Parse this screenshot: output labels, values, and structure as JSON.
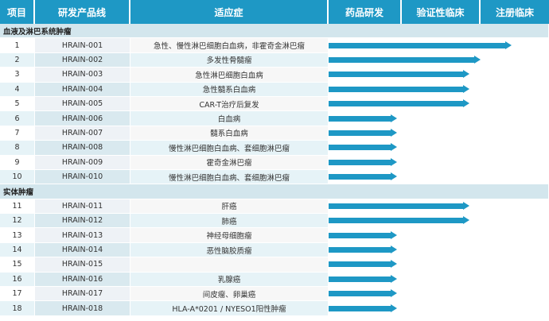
{
  "headers": [
    "项目",
    "研发产品线",
    "适应症",
    "药品研发",
    "验证性临床",
    "注册临床"
  ],
  "sections": [
    {
      "title": "血液及淋巴系统肿瘤",
      "rows": [
        {
          "id": "1",
          "code": "HRAIN-001",
          "indication": "急性、慢性淋巴细胞白血病，非霍奇金淋巴瘤",
          "progress": 0.83
        },
        {
          "id": "2",
          "code": "HRAIN-002",
          "indication": "多发性骨髓瘤",
          "progress": 0.69
        },
        {
          "id": "3",
          "code": "HRAIN-003",
          "indication": "急性淋巴细胞白血病",
          "progress": 0.64
        },
        {
          "id": "4",
          "code": "HRAIN-004",
          "indication": "急性髓系白血病",
          "progress": 0.64
        },
        {
          "id": "5",
          "code": "HRAIN-005",
          "indication": "CAR-T治疗后复发",
          "progress": 0.64
        },
        {
          "id": "6",
          "code": "HRAIN-006",
          "indication": "白血病",
          "progress": 0.31
        },
        {
          "id": "7",
          "code": "HRAIN-007",
          "indication": "髓系白血病",
          "progress": 0.31
        },
        {
          "id": "8",
          "code": "HRAIN-008",
          "indication": "慢性淋巴细胞白血病、套细胞淋巴瘤",
          "progress": 0.31
        },
        {
          "id": "9",
          "code": "HRAIN-009",
          "indication": "霍奇金淋巴瘤",
          "progress": 0.31
        },
        {
          "id": "10",
          "code": "HRAIN-010",
          "indication": "慢性淋巴细胞白血病、套细胞淋巴瘤",
          "progress": 0.31
        }
      ]
    },
    {
      "title": "实体肿瘤",
      "rows": [
        {
          "id": "11",
          "code": "HRAIN-011",
          "indication": "肝癌",
          "progress": 0.64
        },
        {
          "id": "12",
          "code": "HRAIN-012",
          "indication": "肺癌",
          "progress": 0.64
        },
        {
          "id": "13",
          "code": "HRAIN-013",
          "indication": "神经母细胞瘤",
          "progress": 0.31
        },
        {
          "id": "14",
          "code": "HRAIN-014",
          "indication": "恶性脑胶质瘤",
          "progress": 0.31
        },
        {
          "id": "15",
          "code": "HRAIN-015",
          "indication": "",
          "progress": 0.31
        },
        {
          "id": "16",
          "code": "HRAIN-016",
          "indication": "乳腺癌",
          "progress": 0.31
        },
        {
          "id": "17",
          "code": "HRAIN-017",
          "indication": "间皮瘤、卵巢癌",
          "progress": 0.31
        },
        {
          "id": "18",
          "code": "HRAIN-018",
          "indication": "HLA-A*0201 / NYESO1阳性肿瘤",
          "progress": 0.31
        }
      ]
    }
  ],
  "colors": {
    "header": "#1e98c5",
    "bar": "#1e98c5",
    "row_alt": "#e6f3f7",
    "section": "#d3e6ed"
  }
}
